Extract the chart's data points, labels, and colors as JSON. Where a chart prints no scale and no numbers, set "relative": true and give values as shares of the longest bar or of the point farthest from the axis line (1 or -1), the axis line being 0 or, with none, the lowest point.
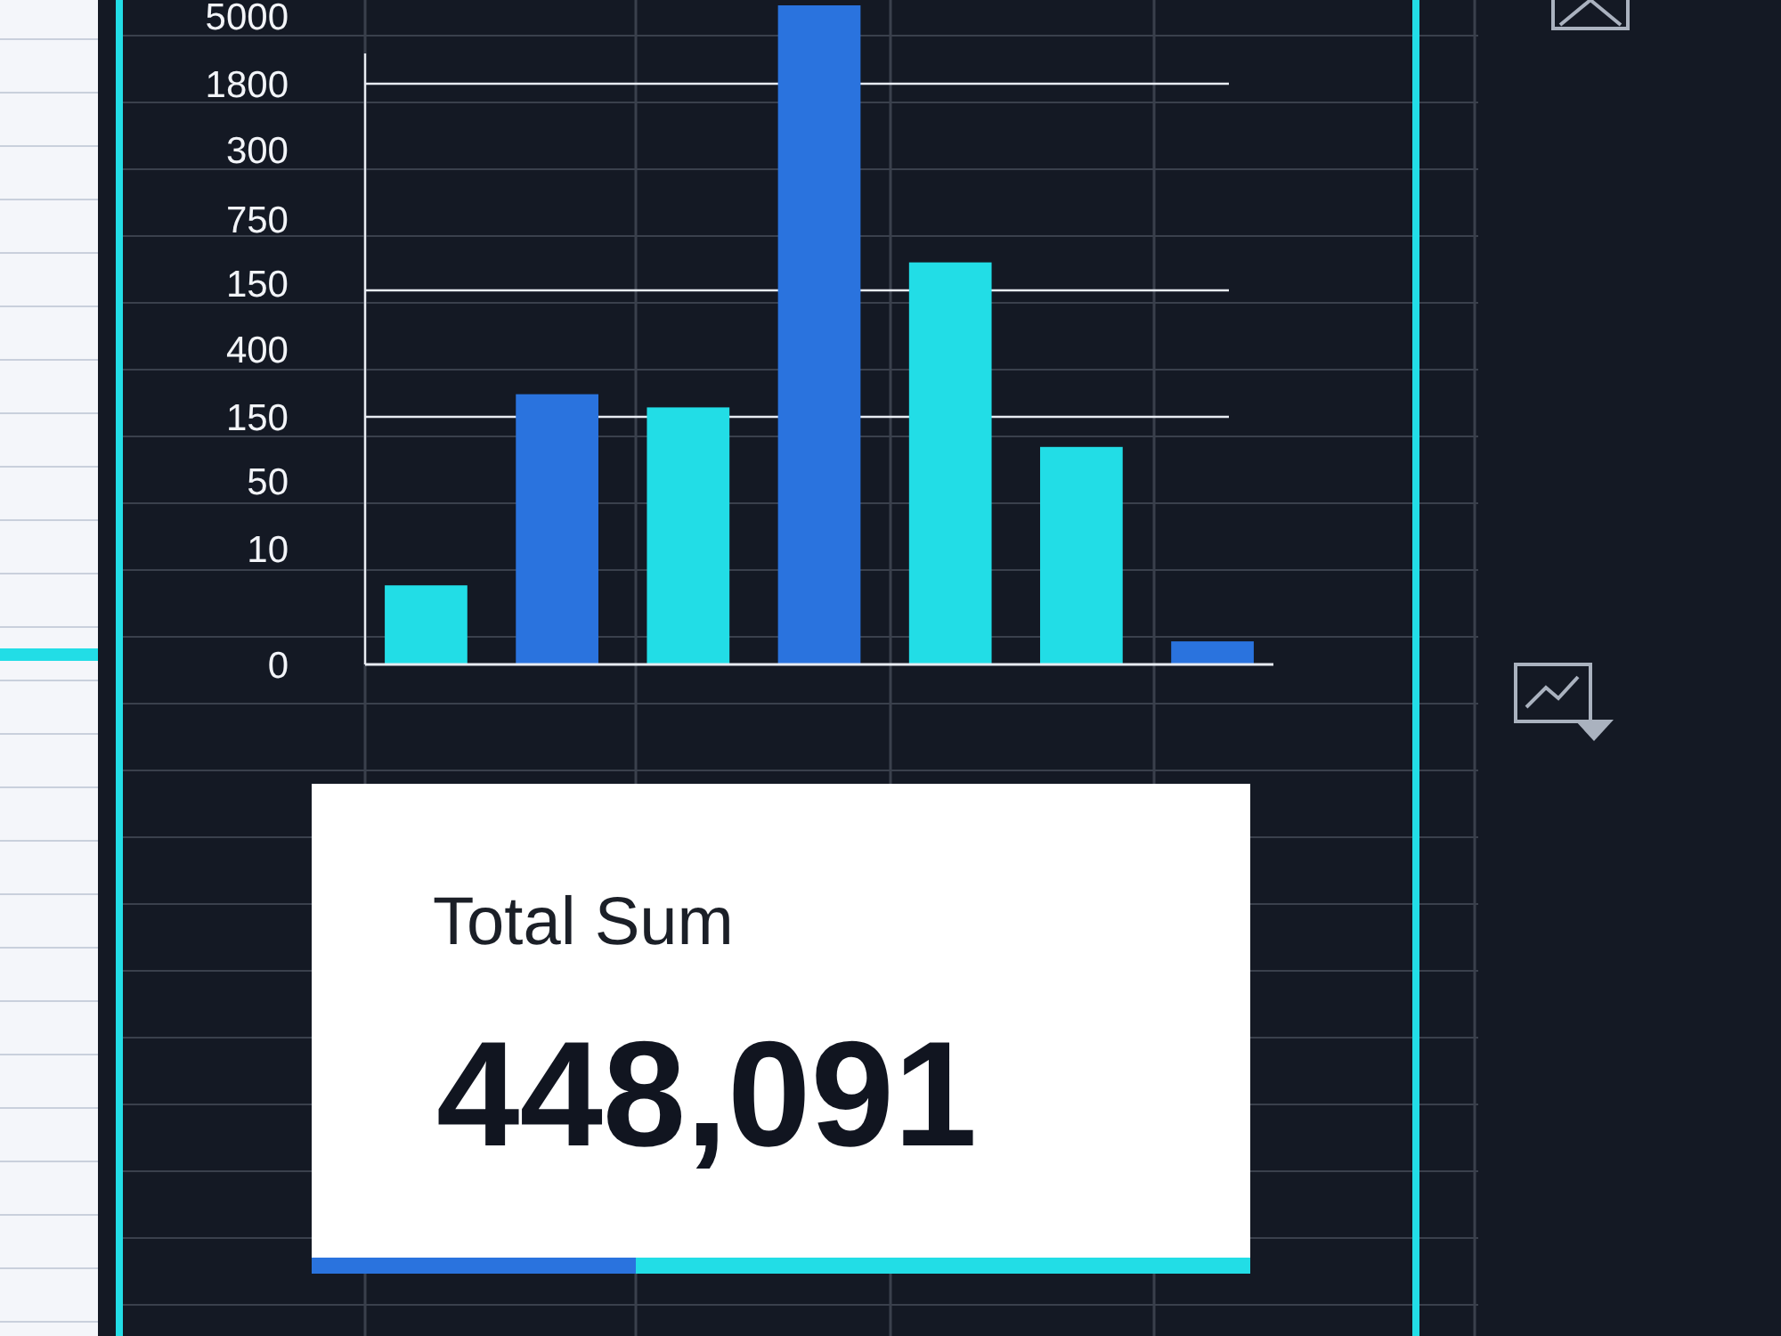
{
  "chart_data": {
    "type": "bar",
    "categories": [
      null,
      null,
      null,
      null,
      null,
      null,
      null
    ],
    "values": [
      0.12,
      0.41,
      0.39,
      1,
      0.61,
      0.33,
      0.035
    ],
    "colors": [
      "#22dde6",
      "#2a73de",
      "#22dde6",
      "#2a73de",
      "#22dde6",
      "#22dde6",
      "#2a73de"
    ],
    "relative": true,
    "grid": "y",
    "annotations": [
      "5000",
      "1800",
      "300",
      "750",
      "150",
      "400",
      "150",
      "50",
      "10",
      "0",
      "Total Sum",
      "448,091"
    ]
  }
}
